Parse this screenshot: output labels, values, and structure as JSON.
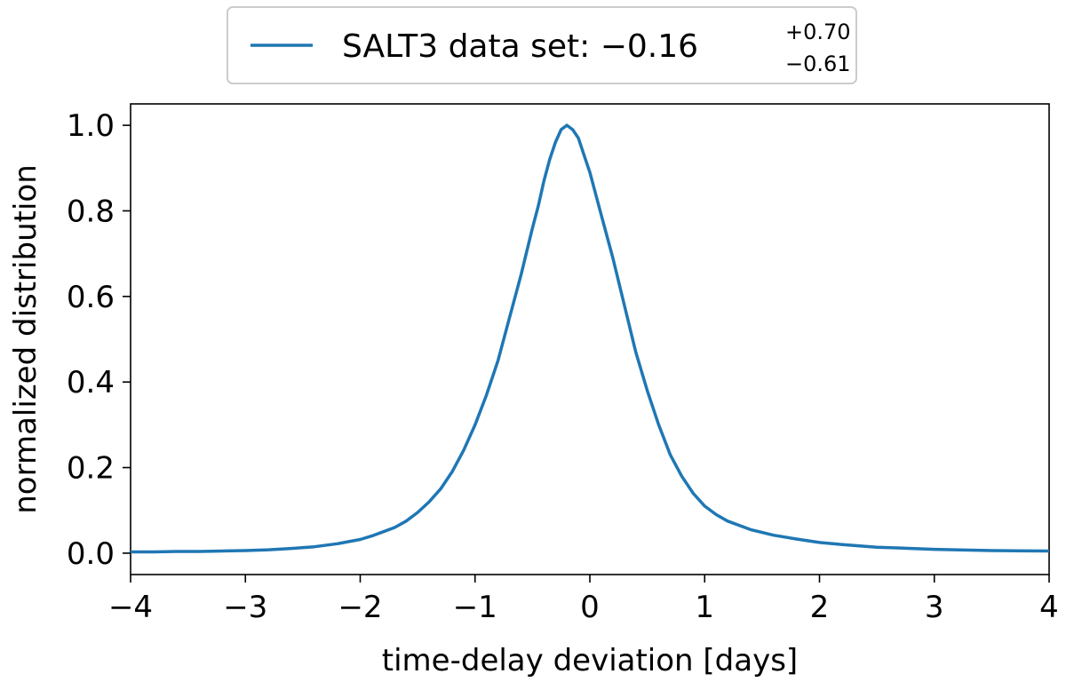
{
  "chart_data": {
    "type": "line",
    "xlabel": "time-delay deviation [days]",
    "ylabel": "normalized distribution",
    "xlim": [
      -4,
      4
    ],
    "ylim": [
      -0.05,
      1.05
    ],
    "xticks": [
      -4,
      -3,
      -2,
      -1,
      0,
      1,
      2,
      3,
      4
    ],
    "xtick_labels": [
      "−4",
      "−3",
      "−2",
      "−1",
      "0",
      "1",
      "2",
      "3",
      "4"
    ],
    "yticks": [
      0.0,
      0.2,
      0.4,
      0.6,
      0.8,
      1.0
    ],
    "ytick_labels": [
      "0.0",
      "0.2",
      "0.4",
      "0.6",
      "0.8",
      "1.0"
    ],
    "grid": false,
    "legend_position": "top-center-outside",
    "series": [
      {
        "name": "SALT3 data set: −0.16",
        "name_superscript": "+0.70",
        "name_subscript": "−0.61",
        "color": "#1f77b4",
        "x": [
          -4.0,
          -3.8,
          -3.6,
          -3.4,
          -3.2,
          -3.0,
          -2.8,
          -2.6,
          -2.4,
          -2.2,
          -2.0,
          -1.9,
          -1.8,
          -1.7,
          -1.6,
          -1.5,
          -1.4,
          -1.3,
          -1.2,
          -1.1,
          -1.0,
          -0.9,
          -0.8,
          -0.7,
          -0.6,
          -0.5,
          -0.45,
          -0.4,
          -0.35,
          -0.3,
          -0.25,
          -0.2,
          -0.15,
          -0.1,
          -0.05,
          0.0,
          0.1,
          0.2,
          0.3,
          0.4,
          0.5,
          0.6,
          0.7,
          0.8,
          0.9,
          1.0,
          1.1,
          1.2,
          1.4,
          1.6,
          1.8,
          2.0,
          2.2,
          2.5,
          3.0,
          3.5,
          4.0
        ],
        "y": [
          0.003,
          0.003,
          0.004,
          0.004,
          0.005,
          0.006,
          0.008,
          0.011,
          0.015,
          0.022,
          0.032,
          0.04,
          0.05,
          0.06,
          0.075,
          0.095,
          0.12,
          0.15,
          0.19,
          0.24,
          0.3,
          0.37,
          0.45,
          0.55,
          0.65,
          0.76,
          0.81,
          0.87,
          0.92,
          0.96,
          0.99,
          1.0,
          0.99,
          0.97,
          0.93,
          0.89,
          0.79,
          0.69,
          0.58,
          0.47,
          0.38,
          0.3,
          0.23,
          0.18,
          0.14,
          0.11,
          0.09,
          0.075,
          0.055,
          0.042,
          0.033,
          0.025,
          0.02,
          0.014,
          0.009,
          0.006,
          0.005
        ]
      }
    ]
  }
}
